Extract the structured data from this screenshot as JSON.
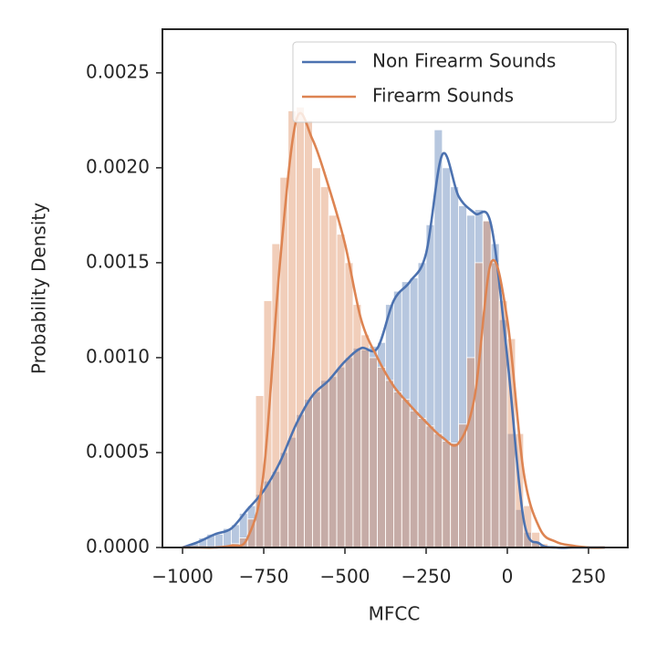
{
  "chart_data": {
    "type": "histogram",
    "xlabel": "MFCC",
    "ylabel": "Probability Density",
    "xlim": [
      -1062,
      371
    ],
    "ylim": [
      0,
      0.00273
    ],
    "xticks": [
      {
        "value": -1000,
        "label": "−1000"
      },
      {
        "value": -750,
        "label": "−750"
      },
      {
        "value": -500,
        "label": "−500"
      },
      {
        "value": -250,
        "label": "−250"
      },
      0,
      250
    ],
    "yticks": [
      {
        "value": 0,
        "label": "0.0000"
      },
      {
        "value": 0.0005,
        "label": "0.0005"
      },
      {
        "value": 0.001,
        "label": "0.0010"
      },
      {
        "value": 0.0015,
        "label": "0.0015"
      },
      {
        "value": 0.002,
        "label": "0.0020"
      },
      {
        "value": 0.0025,
        "label": "0.0025"
      }
    ],
    "legend": "upper right",
    "bins": [
      -975,
      -950,
      -925,
      -900,
      -875,
      -850,
      -825,
      -800,
      -775,
      -750,
      -725,
      -700,
      -675,
      -650,
      -625,
      -600,
      -575,
      -550,
      -525,
      -500,
      -475,
      -450,
      -425,
      -400,
      -375,
      -350,
      -325,
      -300,
      -275,
      -250,
      -225,
      -200,
      -175,
      -150,
      -125,
      -100,
      -75,
      -50,
      -25,
      0,
      25,
      50,
      75,
      100,
      125
    ],
    "kde_x": [
      -1000,
      -950,
      -900,
      -850,
      -800,
      -750,
      -700,
      -650,
      -600,
      -550,
      -500,
      -450,
      -400,
      -350,
      -300,
      -250,
      -200,
      -150,
      -100,
      -50,
      0,
      50,
      100,
      150,
      200,
      250,
      300
    ],
    "series": [
      {
        "name": "Non Firearm Sounds",
        "color": "#4c72b0",
        "values": [
          2e-05,
          5e-05,
          7e-05,
          7e-05,
          0.0001,
          0.00012,
          0.00018,
          0.00022,
          0.00028,
          0.00035,
          0.0004,
          0.0005,
          0.00058,
          0.0007,
          0.00078,
          0.00082,
          0.00088,
          0.0009,
          0.00095,
          0.001,
          0.00105,
          0.00104,
          0.00106,
          0.00108,
          0.00128,
          0.00135,
          0.0014,
          0.00142,
          0.0015,
          0.0017,
          0.0022,
          0.002,
          0.0019,
          0.0018,
          0.00175,
          0.00178,
          0.00172,
          0.0016,
          0.0012,
          0.0006,
          0.0002,
          8e-05,
          3e-05,
          1e-05
        ],
        "kde": [
          0,
          3e-05,
          7e-05,
          0.0001,
          0.0002,
          0.0003,
          0.00045,
          0.00065,
          0.0008,
          0.00088,
          0.00098,
          0.00105,
          0.00105,
          0.0013,
          0.0014,
          0.00155,
          0.00207,
          0.00185,
          0.00176,
          0.0017,
          0.001,
          0.00015,
          2e-05,
          0,
          0,
          0,
          0
        ]
      },
      {
        "name": "Firearm Sounds",
        "color": "#dd8452",
        "values": [
          0,
          0,
          0,
          0,
          0,
          2e-05,
          5e-05,
          0.00015,
          0.0008,
          0.0013,
          0.0016,
          0.00195,
          0.0023,
          0.00232,
          0.00225,
          0.002,
          0.0019,
          0.00175,
          0.00165,
          0.0015,
          0.00128,
          0.00112,
          0.001,
          0.00095,
          0.00088,
          0.00082,
          0.00078,
          0.00072,
          0.00068,
          0.00064,
          0.0006,
          0.00056,
          0.00055,
          0.00065,
          0.001,
          0.0015,
          0.00172,
          0.0015,
          0.0013,
          0.0011,
          0.0006,
          0.00022,
          8e-05,
          2e-05
        ],
        "kde": [
          0,
          0,
          0,
          1e-05,
          5e-05,
          0.0004,
          0.0015,
          0.00225,
          0.00215,
          0.0019,
          0.0016,
          0.0012,
          0.001,
          0.00085,
          0.00075,
          0.00066,
          0.00058,
          0.00055,
          0.0008,
          0.0015,
          0.0012,
          0.0004,
          0.0001,
          3e-05,
          1e-05,
          0,
          0
        ]
      }
    ]
  }
}
